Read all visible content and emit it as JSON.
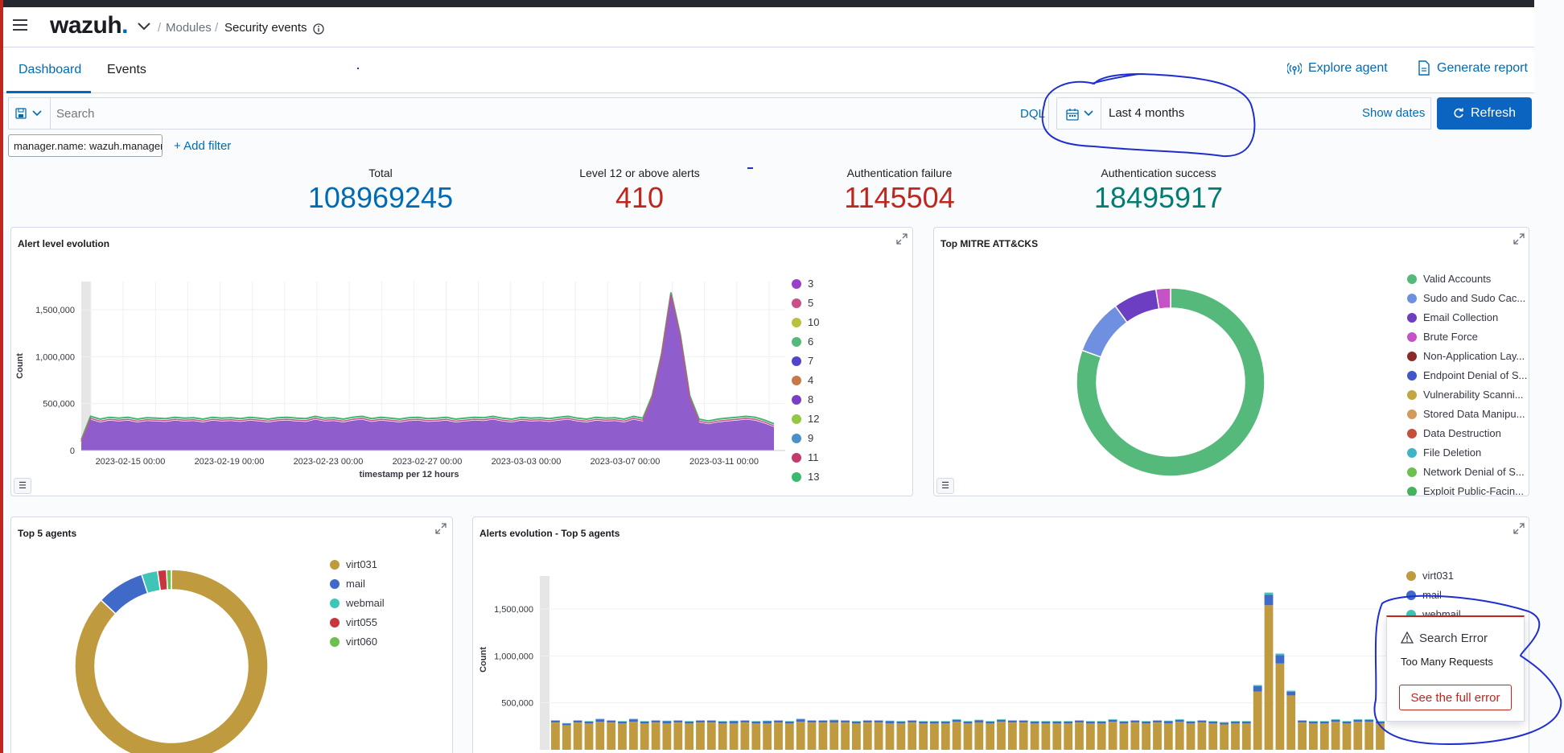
{
  "header": {
    "brand": "wazuh",
    "brand_dot": ".",
    "breadcrumb": [
      "Modules",
      "Security events"
    ],
    "separator": "/"
  },
  "tabs": [
    {
      "label": "Dashboard",
      "active": true
    },
    {
      "label": "Events",
      "active": false
    }
  ],
  "actions": {
    "explore_agent": "Explore agent",
    "generate_report": "Generate report"
  },
  "search": {
    "placeholder": "Search",
    "dql_label": "DQL"
  },
  "datepicker": {
    "range": "Last 4 months",
    "show_dates": "Show dates",
    "refresh": "Refresh"
  },
  "filters": {
    "pill": "manager.name: wazuh.manager",
    "add_filter": "+ Add filter"
  },
  "metrics": [
    {
      "label": "Total",
      "value": "108969245",
      "color": "#006bb4"
    },
    {
      "label": "Level 12 or above alerts",
      "value": "410",
      "color": "#bd271e"
    },
    {
      "label": "Authentication failure",
      "value": "1145504",
      "color": "#bd271e"
    },
    {
      "label": "Authentication success",
      "value": "18495917",
      "color": "#017d73"
    }
  ],
  "panels": {
    "alert_evolution": {
      "title": "Alert level evolution",
      "ylabel": "Count",
      "xlabel": "timestamp per 12 hours",
      "yticks": [
        "1,500,000",
        "1,000,000",
        "500,000",
        "0"
      ],
      "xticks": [
        "2023-02-15 00:00",
        "2023-02-19 00:00",
        "2023-02-23 00:00",
        "2023-02-27 00:00",
        "2023-03-03 00:00",
        "2023-03-07 00:00",
        "2023-03-11 00:00"
      ],
      "legend": [
        {
          "label": "3",
          "color": "#9b3fc8"
        },
        {
          "label": "5",
          "color": "#c94f87"
        },
        {
          "label": "10",
          "color": "#b9c13e"
        },
        {
          "label": "6",
          "color": "#54b97a"
        },
        {
          "label": "7",
          "color": "#5046c7"
        },
        {
          "label": "4",
          "color": "#c77a47"
        },
        {
          "label": "8",
          "color": "#7d3fc2"
        },
        {
          "label": "12",
          "color": "#93c845"
        },
        {
          "label": "9",
          "color": "#4a90c9"
        },
        {
          "label": "11",
          "color": "#c23b6b"
        },
        {
          "label": "13",
          "color": "#3cb96f"
        }
      ]
    },
    "mitre": {
      "title": "Top MITRE ATT&CKS",
      "legend": [
        {
          "label": "Valid Accounts",
          "color": "#54b97a"
        },
        {
          "label": "Sudo and Sudo Cac...",
          "color": "#6f8fe0"
        },
        {
          "label": "Email Collection",
          "color": "#6c3fc2"
        },
        {
          "label": "Brute Force",
          "color": "#c653c6"
        },
        {
          "label": "Non-Application Lay...",
          "color": "#8a2a2a"
        },
        {
          "label": "Endpoint Denial of S...",
          "color": "#3f57c7"
        },
        {
          "label": "Vulnerability Scanni...",
          "color": "#c2a63f"
        },
        {
          "label": "Stored Data Manipu...",
          "color": "#d49a5a"
        },
        {
          "label": "Data Destruction",
          "color": "#c4503c"
        },
        {
          "label": "File Deletion",
          "color": "#3fb4c7"
        },
        {
          "label": "Network Denial of S...",
          "color": "#6cc04f"
        },
        {
          "label": "Exploit Public-Facin...",
          "color": "#45b35b"
        }
      ],
      "slices": [
        {
          "label": "Valid Accounts",
          "value": 80.5
        },
        {
          "label": "Sudo and Sudo Cac...",
          "value": 9.5
        },
        {
          "label": "Email Collection",
          "value": 7.5
        },
        {
          "label": "Brute Force",
          "value": 2.5
        }
      ]
    },
    "top_agents": {
      "title": "Top 5 agents",
      "legend": [
        {
          "label": "virt031",
          "color": "#c09a3f"
        },
        {
          "label": "mail",
          "color": "#3f6ac7"
        },
        {
          "label": "webmail",
          "color": "#3fc4b8"
        },
        {
          "label": "virt055",
          "color": "#c7353f"
        },
        {
          "label": "virt060",
          "color": "#6cc04f"
        }
      ],
      "slices": [
        {
          "label": "virt031",
          "value": 87
        },
        {
          "label": "mail",
          "value": 8
        },
        {
          "label": "webmail",
          "value": 2.7
        },
        {
          "label": "virt055",
          "value": 1.5
        },
        {
          "label": "virt060",
          "value": 0.8
        }
      ]
    },
    "agents_evolution": {
      "title": "Alerts evolution - Top 5 agents",
      "ylabel": "Count",
      "yticks": [
        "1,500,000",
        "1,000,000",
        "500,000"
      ],
      "legend": [
        {
          "label": "virt031",
          "color": "#c09a3f"
        },
        {
          "label": "mail",
          "color": "#3f6ac7"
        },
        {
          "label": "webmail",
          "color": "#3fc4b8"
        }
      ]
    }
  },
  "toast": {
    "title": "Search Error",
    "message": "Too Many Requests",
    "button": "See the full error"
  },
  "colors": {
    "accent": "#006bb4",
    "danger": "#bd271e",
    "refresh": "#0b64c0",
    "annotation": "#1f2fcf"
  },
  "chart_data": [
    {
      "type": "area",
      "title": "Alert level evolution",
      "xlabel": "timestamp per 12 hours",
      "ylabel": "Count",
      "ylim": [
        0,
        1800000
      ],
      "x_range": [
        "2023-02-13 00:00",
        "2023-03-14 12:00"
      ],
      "series": [
        {
          "name": "3",
          "values": [
            80000,
            330000,
            300000,
            320000,
            310000,
            320000,
            300000,
            315000,
            310000,
            305000,
            320000,
            310000,
            315000,
            300000,
            320000,
            310000,
            315000,
            305000,
            320000,
            310000,
            300000,
            315000,
            320000,
            310000,
            305000,
            330000,
            310000,
            315000,
            300000,
            320000,
            330000,
            305000,
            320000,
            310000,
            300000,
            315000,
            320000,
            305000,
            310000,
            320000,
            300000,
            310000,
            320000,
            315000,
            330000,
            310000,
            300000,
            320000,
            310000,
            315000,
            305000,
            320000,
            330000,
            310000,
            300000,
            320000,
            310000,
            315000,
            300000,
            330000,
            310000,
            550000,
            1000000,
            1650000,
            1200000,
            550000,
            300000,
            280000,
            300000,
            310000,
            320000,
            330000,
            320000,
            290000,
            250000
          ]
        }
      ]
    },
    {
      "type": "pie",
      "title": "Top MITRE ATT&CKS",
      "categories": [
        "Valid Accounts",
        "Sudo and Sudo Cac...",
        "Email Collection",
        "Brute Force"
      ],
      "values": [
        80.5,
        9.5,
        7.5,
        2.5
      ]
    },
    {
      "type": "pie",
      "title": "Top 5 agents",
      "categories": [
        "virt031",
        "mail",
        "webmail",
        "virt055",
        "virt060"
      ],
      "values": [
        87,
        8,
        2.7,
        1.5,
        0.8
      ]
    },
    {
      "type": "bar",
      "title": "Alerts evolution - Top 5 agents",
      "ylabel": "Count",
      "ylim": [
        0,
        1650000
      ],
      "series": [
        {
          "name": "virt031",
          "values": [
            290000,
            260000,
            290000,
            280000,
            300000,
            290000,
            280000,
            300000,
            280000,
            290000,
            280000,
            290000,
            280000,
            290000,
            290000,
            280000,
            280000,
            290000,
            280000,
            280000,
            290000,
            280000,
            300000,
            290000,
            290000,
            290000,
            290000,
            280000,
            290000,
            290000,
            280000,
            280000,
            290000,
            280000,
            280000,
            280000,
            300000,
            280000,
            290000,
            280000,
            300000,
            290000,
            290000,
            280000,
            280000,
            280000,
            280000,
            290000,
            280000,
            280000,
            300000,
            280000,
            290000,
            280000,
            290000,
            280000,
            300000,
            280000,
            290000,
            280000,
            270000,
            280000,
            280000,
            620000,
            1540000,
            920000,
            580000,
            290000,
            280000,
            280000,
            300000,
            280000,
            300000,
            300000,
            280000
          ]
        },
        {
          "name": "mail",
          "values": [
            20000,
            20000,
            20000,
            20000,
            25000,
            20000,
            20000,
            25000,
            20000,
            20000,
            25000,
            20000,
            20000,
            20000,
            20000,
            20000,
            25000,
            20000,
            20000,
            25000,
            20000,
            20000,
            25000,
            20000,
            20000,
            25000,
            20000,
            20000,
            20000,
            20000,
            25000,
            20000,
            20000,
            20000,
            20000,
            20000,
            20000,
            20000,
            25000,
            20000,
            20000,
            20000,
            20000,
            20000,
            20000,
            20000,
            20000,
            20000,
            20000,
            20000,
            20000,
            20000,
            20000,
            20000,
            20000,
            25000,
            20000,
            20000,
            20000,
            20000,
            20000,
            20000,
            20000,
            60000,
            110000,
            90000,
            40000,
            20000,
            20000,
            20000,
            20000,
            20000,
            20000,
            20000,
            20000
          ]
        },
        {
          "name": "webmail",
          "values": [
            5000,
            5000,
            5000,
            5000,
            5000,
            5000,
            5000,
            5000,
            5000,
            5000,
            5000,
            5000,
            5000,
            5000,
            5000,
            5000,
            5000,
            5000,
            5000,
            5000,
            5000,
            5000,
            5000,
            5000,
            5000,
            5000,
            5000,
            5000,
            5000,
            5000,
            5000,
            5000,
            5000,
            5000,
            5000,
            5000,
            5000,
            5000,
            5000,
            5000,
            5000,
            5000,
            5000,
            5000,
            5000,
            5000,
            5000,
            5000,
            5000,
            5000,
            5000,
            5000,
            5000,
            5000,
            5000,
            5000,
            5000,
            5000,
            5000,
            5000,
            5000,
            5000,
            5000,
            10000,
            25000,
            15000,
            10000,
            5000,
            5000,
            5000,
            5000,
            5000,
            5000,
            5000,
            5000
          ]
        }
      ]
    }
  ]
}
